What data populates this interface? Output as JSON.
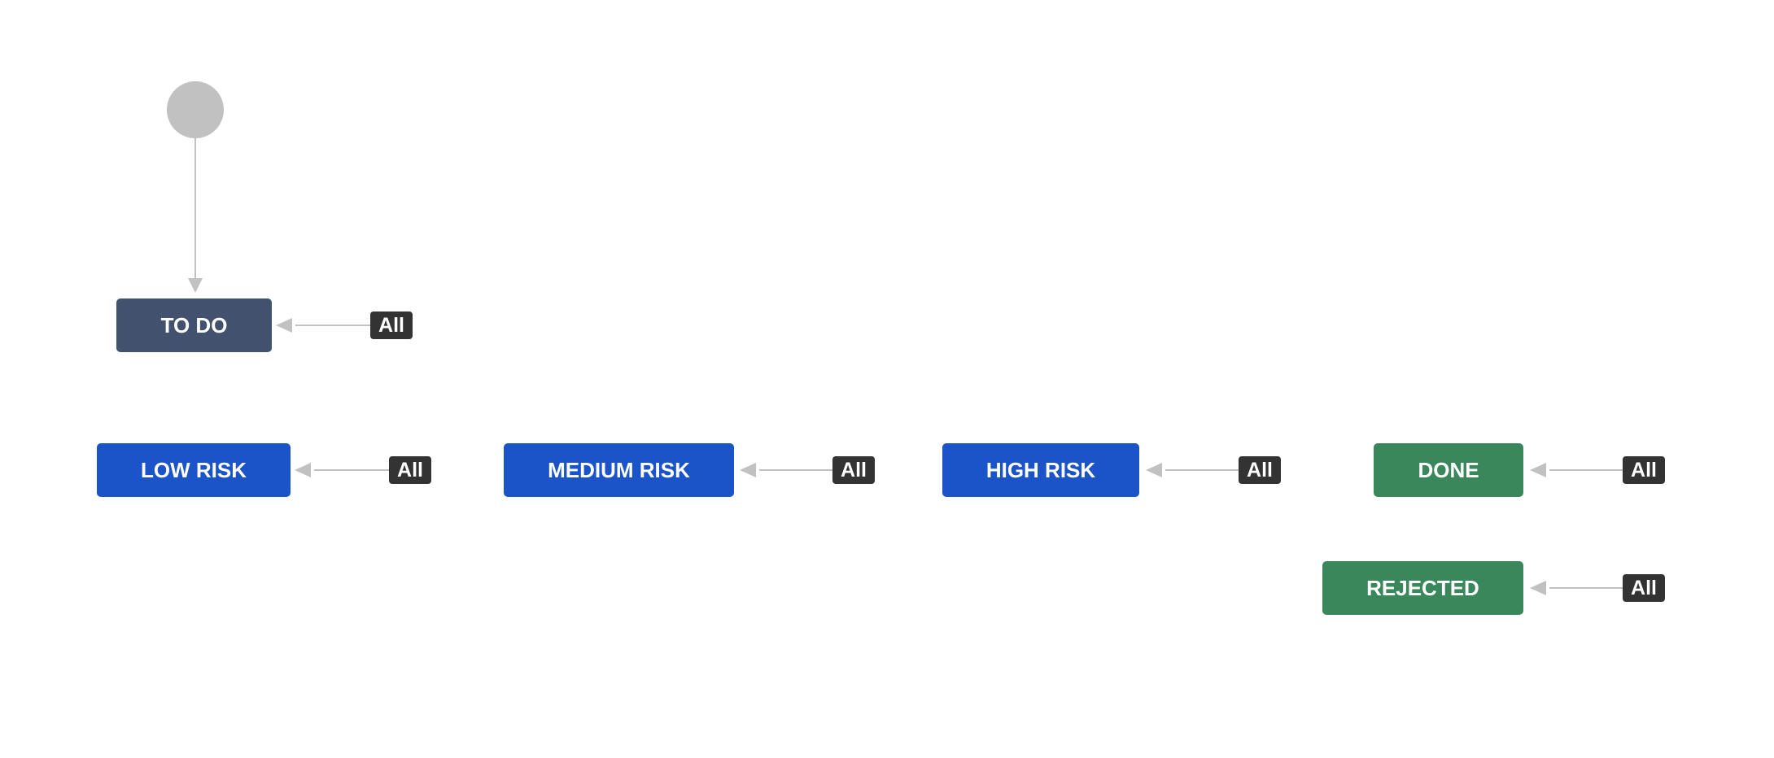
{
  "colors": {
    "connector": "#c1c1c1",
    "start_node": "#c1c1c1",
    "todo": "#42526e",
    "in_progress": "#1b53c9",
    "done": "#3b875c",
    "tag": "#333333",
    "text": "#ffffff"
  },
  "start": {
    "icon": "start-circle-icon"
  },
  "statuses": [
    {
      "id": "todo",
      "label": "TO DO",
      "category": "todo",
      "transition_label": "All"
    },
    {
      "id": "low-risk",
      "label": "LOW RISK",
      "category": "in_progress",
      "transition_label": "All"
    },
    {
      "id": "medium-risk",
      "label": "MEDIUM RISK",
      "category": "in_progress",
      "transition_label": "All"
    },
    {
      "id": "high-risk",
      "label": "HIGH RISK",
      "category": "in_progress",
      "transition_label": "All"
    },
    {
      "id": "done",
      "label": "DONE",
      "category": "done",
      "transition_label": "All"
    },
    {
      "id": "rejected",
      "label": "REJECTED",
      "category": "done",
      "transition_label": "All"
    }
  ]
}
